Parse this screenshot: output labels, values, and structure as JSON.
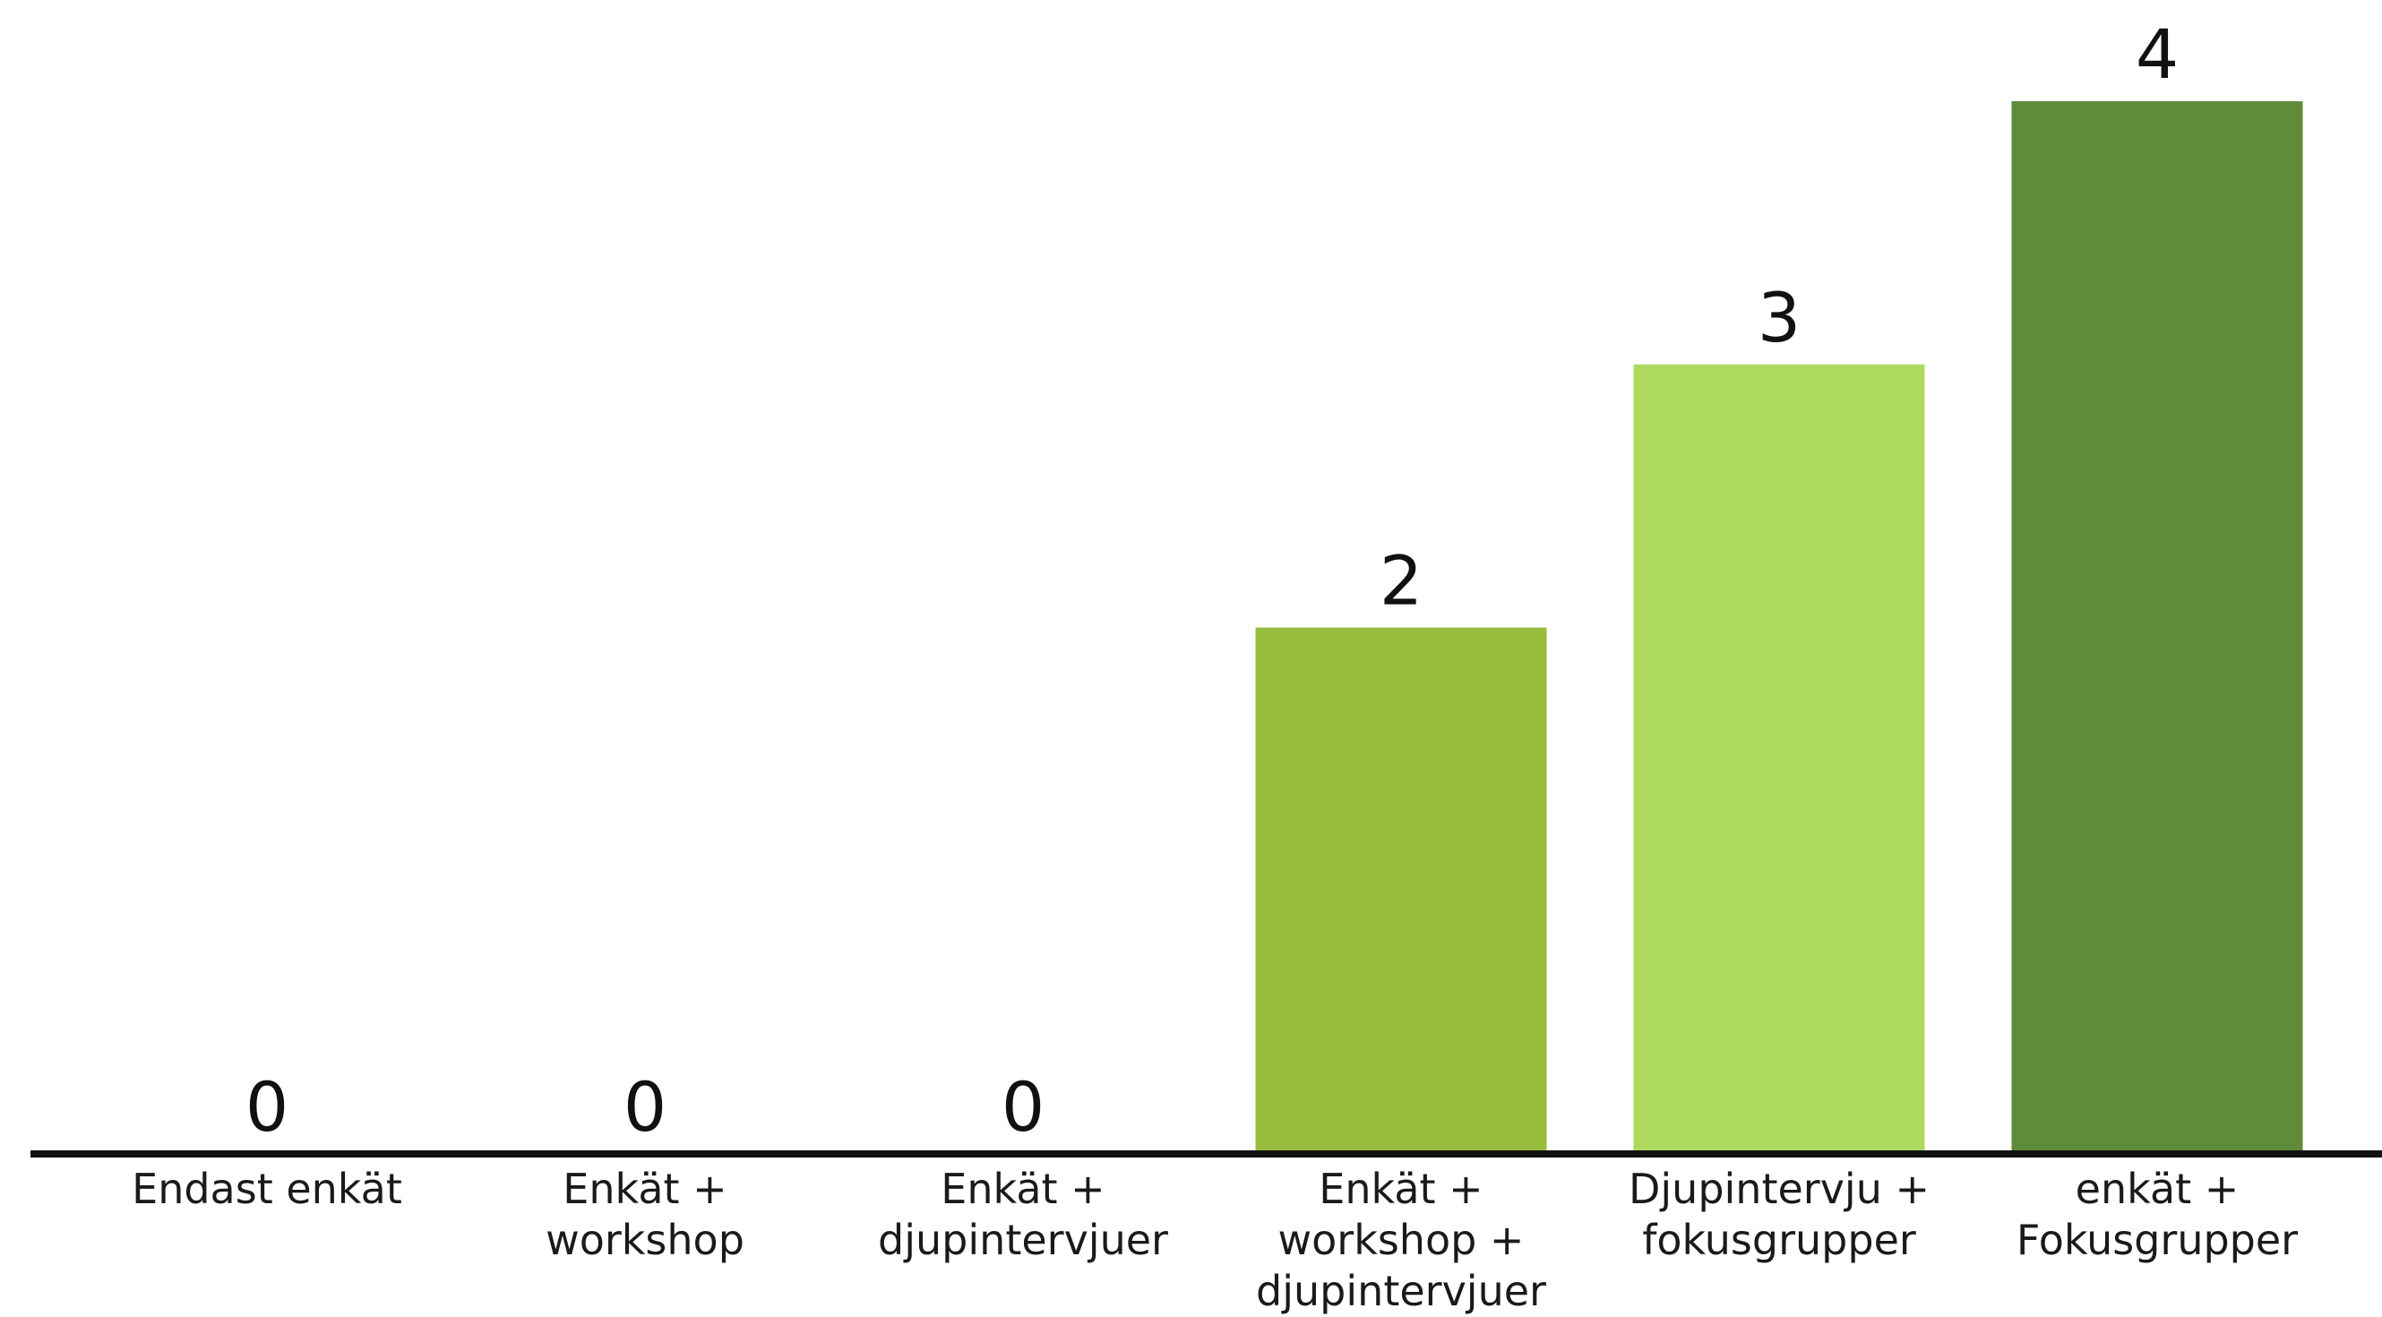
{
  "chart_data": {
    "type": "bar",
    "categories": [
      [
        "Endast enkät"
      ],
      [
        "Enkät +",
        "workshop"
      ],
      [
        "Enkät +",
        "djupintervjuer"
      ],
      [
        "Enkät +",
        "workshop +",
        "djupintervjuer"
      ],
      [
        "Djupintervju +",
        "fokusgrupper"
      ],
      [
        "enkät +",
        "Fokusgrupper"
      ]
    ],
    "values": [
      0,
      0,
      0,
      2,
      3,
      4
    ],
    "data_labels": [
      "0",
      "0",
      "0",
      "2",
      "3",
      "4"
    ],
    "bar_colors": [
      "#97bb3d",
      "#97bb3d",
      "#97bb3d",
      "#97bb3d",
      "#add95f",
      "#608b3b"
    ],
    "axis_color": "#111111",
    "ylim": [
      0,
      4
    ],
    "title": "",
    "xlabel": "",
    "ylabel": "",
    "grid": false,
    "legend": "none"
  }
}
